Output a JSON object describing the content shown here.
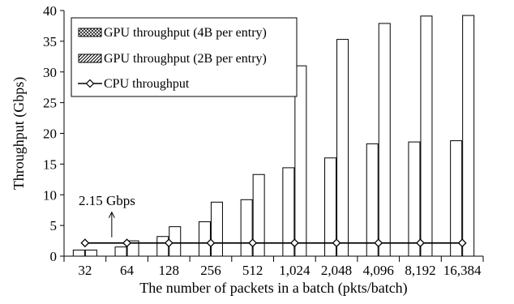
{
  "chart_data": {
    "type": "bar",
    "xlabel": "The number of packets in a batch (pkts/batch)",
    "ylabel": "Throughput (Gbps)",
    "ylim": [
      0,
      40
    ],
    "yticks": [
      0,
      5,
      10,
      15,
      20,
      25,
      30,
      35,
      40
    ],
    "grid": false,
    "legend_placement": "top-left",
    "categories": [
      "32",
      "64",
      "128",
      "256",
      "512",
      "1,024",
      "2,048",
      "4,096",
      "8,192",
      "16,384"
    ],
    "series": [
      {
        "name": "GPU throughput (4B per entry)",
        "kind": "bar",
        "pattern": "cross-hatch",
        "values": [
          1.0,
          1.5,
          3.2,
          5.6,
          9.2,
          14.4,
          16.0,
          18.3,
          18.6,
          18.8
        ]
      },
      {
        "name": "GPU throughput (2B per entry)",
        "kind": "bar",
        "pattern": "diagonal-hatch",
        "values": [
          1.0,
          2.5,
          4.8,
          8.8,
          13.3,
          31.0,
          35.3,
          37.9,
          39.1,
          39.2
        ]
      },
      {
        "name": "CPU throughput",
        "kind": "line",
        "marker": "diamond",
        "values": [
          2.15,
          2.15,
          2.15,
          2.15,
          2.15,
          2.15,
          2.15,
          2.15,
          2.15,
          2.15
        ]
      }
    ],
    "annotations": [
      {
        "text": "2.15 Gbps",
        "category": "32",
        "arrow": "up"
      }
    ]
  }
}
